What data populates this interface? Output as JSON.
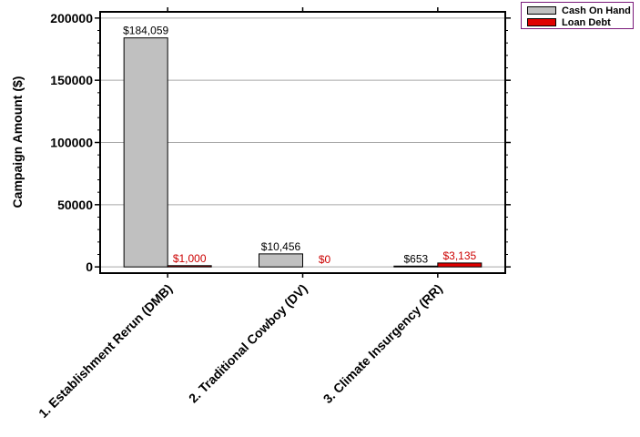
{
  "chart_data": {
    "type": "bar",
    "title": "",
    "xlabel": "",
    "ylabel": "Campaign Amount ($)",
    "ylim": [
      -5000,
      205000
    ],
    "yticks": [
      0,
      50000,
      100000,
      150000,
      200000
    ],
    "ytick_labels": [
      "0",
      "50000",
      "100000",
      "150000",
      "200000"
    ],
    "grid": true,
    "legend_position": "top-right",
    "categories": [
      "1. Establishment Rerun (DMB)",
      "2. Traditional Cowboy (DV)",
      "3. Climate Insurgency (RR)"
    ],
    "series": [
      {
        "name": "Cash On Hand",
        "color": "#c0c0c0",
        "label_color": "#000000",
        "values": [
          184059,
          10456,
          653
        ],
        "labels": [
          "$184,059",
          "$10,456",
          "$653"
        ]
      },
      {
        "name": "Loan Debt",
        "color": "#e00000",
        "label_color": "#cc0000",
        "values": [
          1000,
          0,
          3135
        ],
        "labels": [
          "$1,000",
          "$0",
          "$3,135"
        ]
      }
    ]
  }
}
